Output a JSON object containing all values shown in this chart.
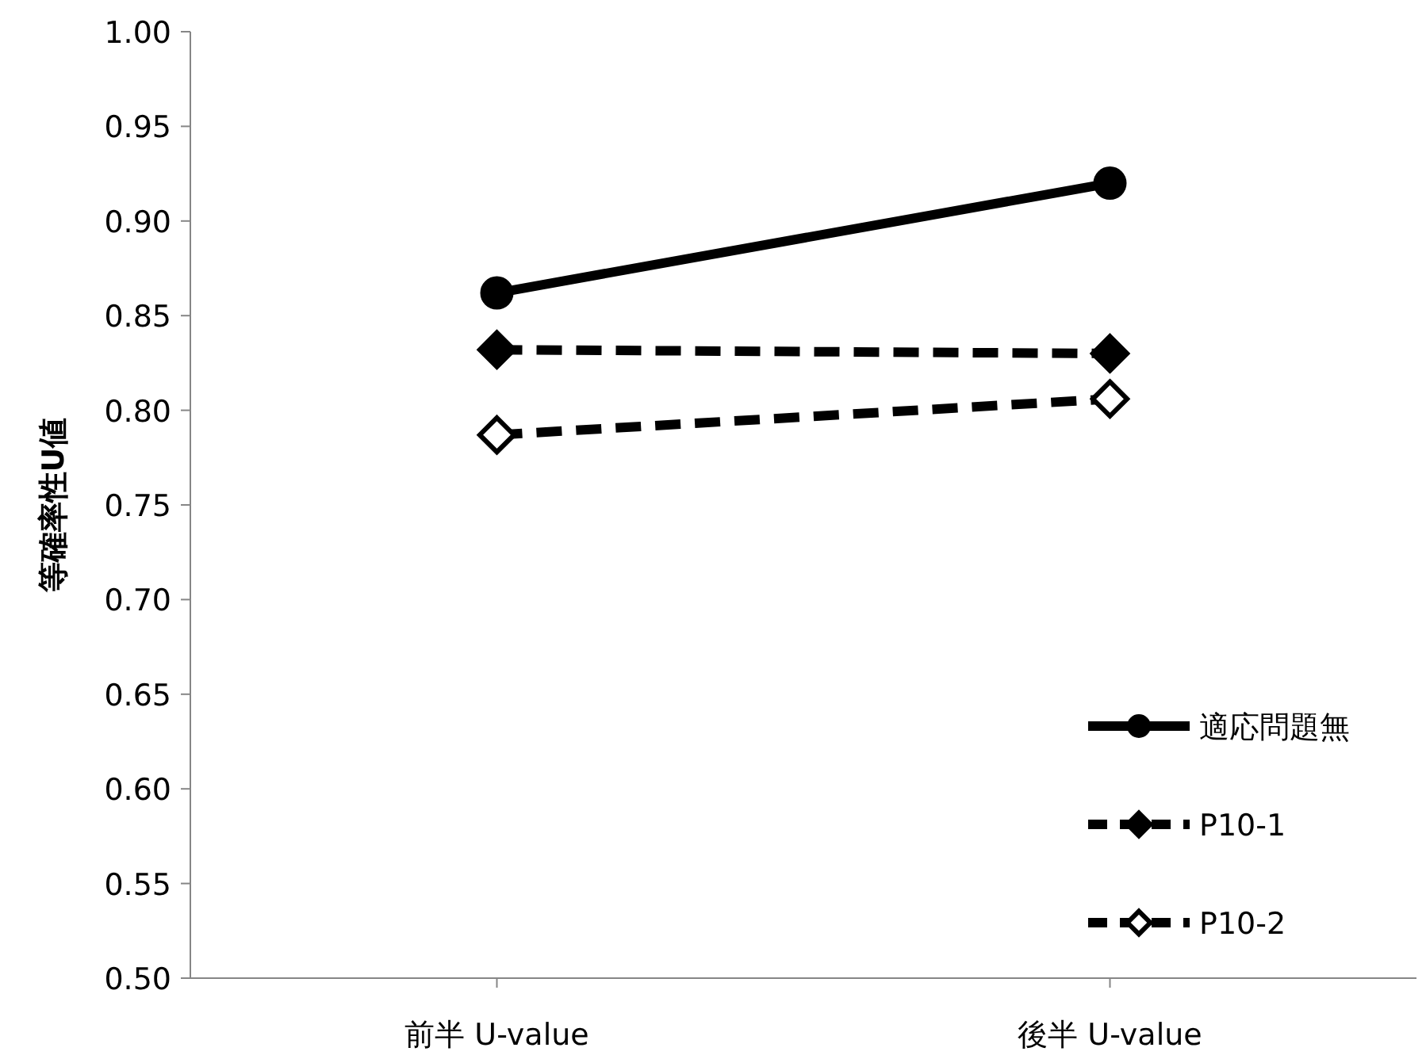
{
  "chart_data": {
    "type": "line",
    "ylabel": "等確率性U値",
    "categories": [
      "前半 U-value",
      "後半 U-value"
    ],
    "series": [
      {
        "name": "適応問題無",
        "color": "#000000",
        "values": [
          0.862,
          0.92
        ],
        "marker": "circle",
        "line_style": "solid"
      },
      {
        "name": "P10-1",
        "color": "#000000",
        "values": [
          0.832,
          0.83
        ],
        "marker": "diamond",
        "line_style": "dashed"
      },
      {
        "name": "P10-2",
        "color": "#000000",
        "values": [
          0.787,
          0.806
        ],
        "marker": "diamond",
        "line_style": "dashed"
      }
    ],
    "ylim": [
      0.5,
      1.0
    ],
    "yticks": [
      {
        "value": 0.5,
        "label": "0.50"
      },
      {
        "value": 0.55,
        "label": "0.55"
      },
      {
        "value": 0.6,
        "label": "0.60"
      },
      {
        "value": 0.65,
        "label": "0.65"
      },
      {
        "value": 0.7,
        "label": "0.70"
      },
      {
        "value": 0.75,
        "label": "0.75"
      },
      {
        "value": 0.8,
        "label": "0.80"
      },
      {
        "value": 0.85,
        "label": "0.85"
      },
      {
        "value": 0.9,
        "label": "0.90"
      },
      {
        "value": 0.95,
        "label": "0.95"
      },
      {
        "value": 1.0,
        "label": "1.00"
      }
    ],
    "grid": false,
    "legend": "bottom right"
  }
}
